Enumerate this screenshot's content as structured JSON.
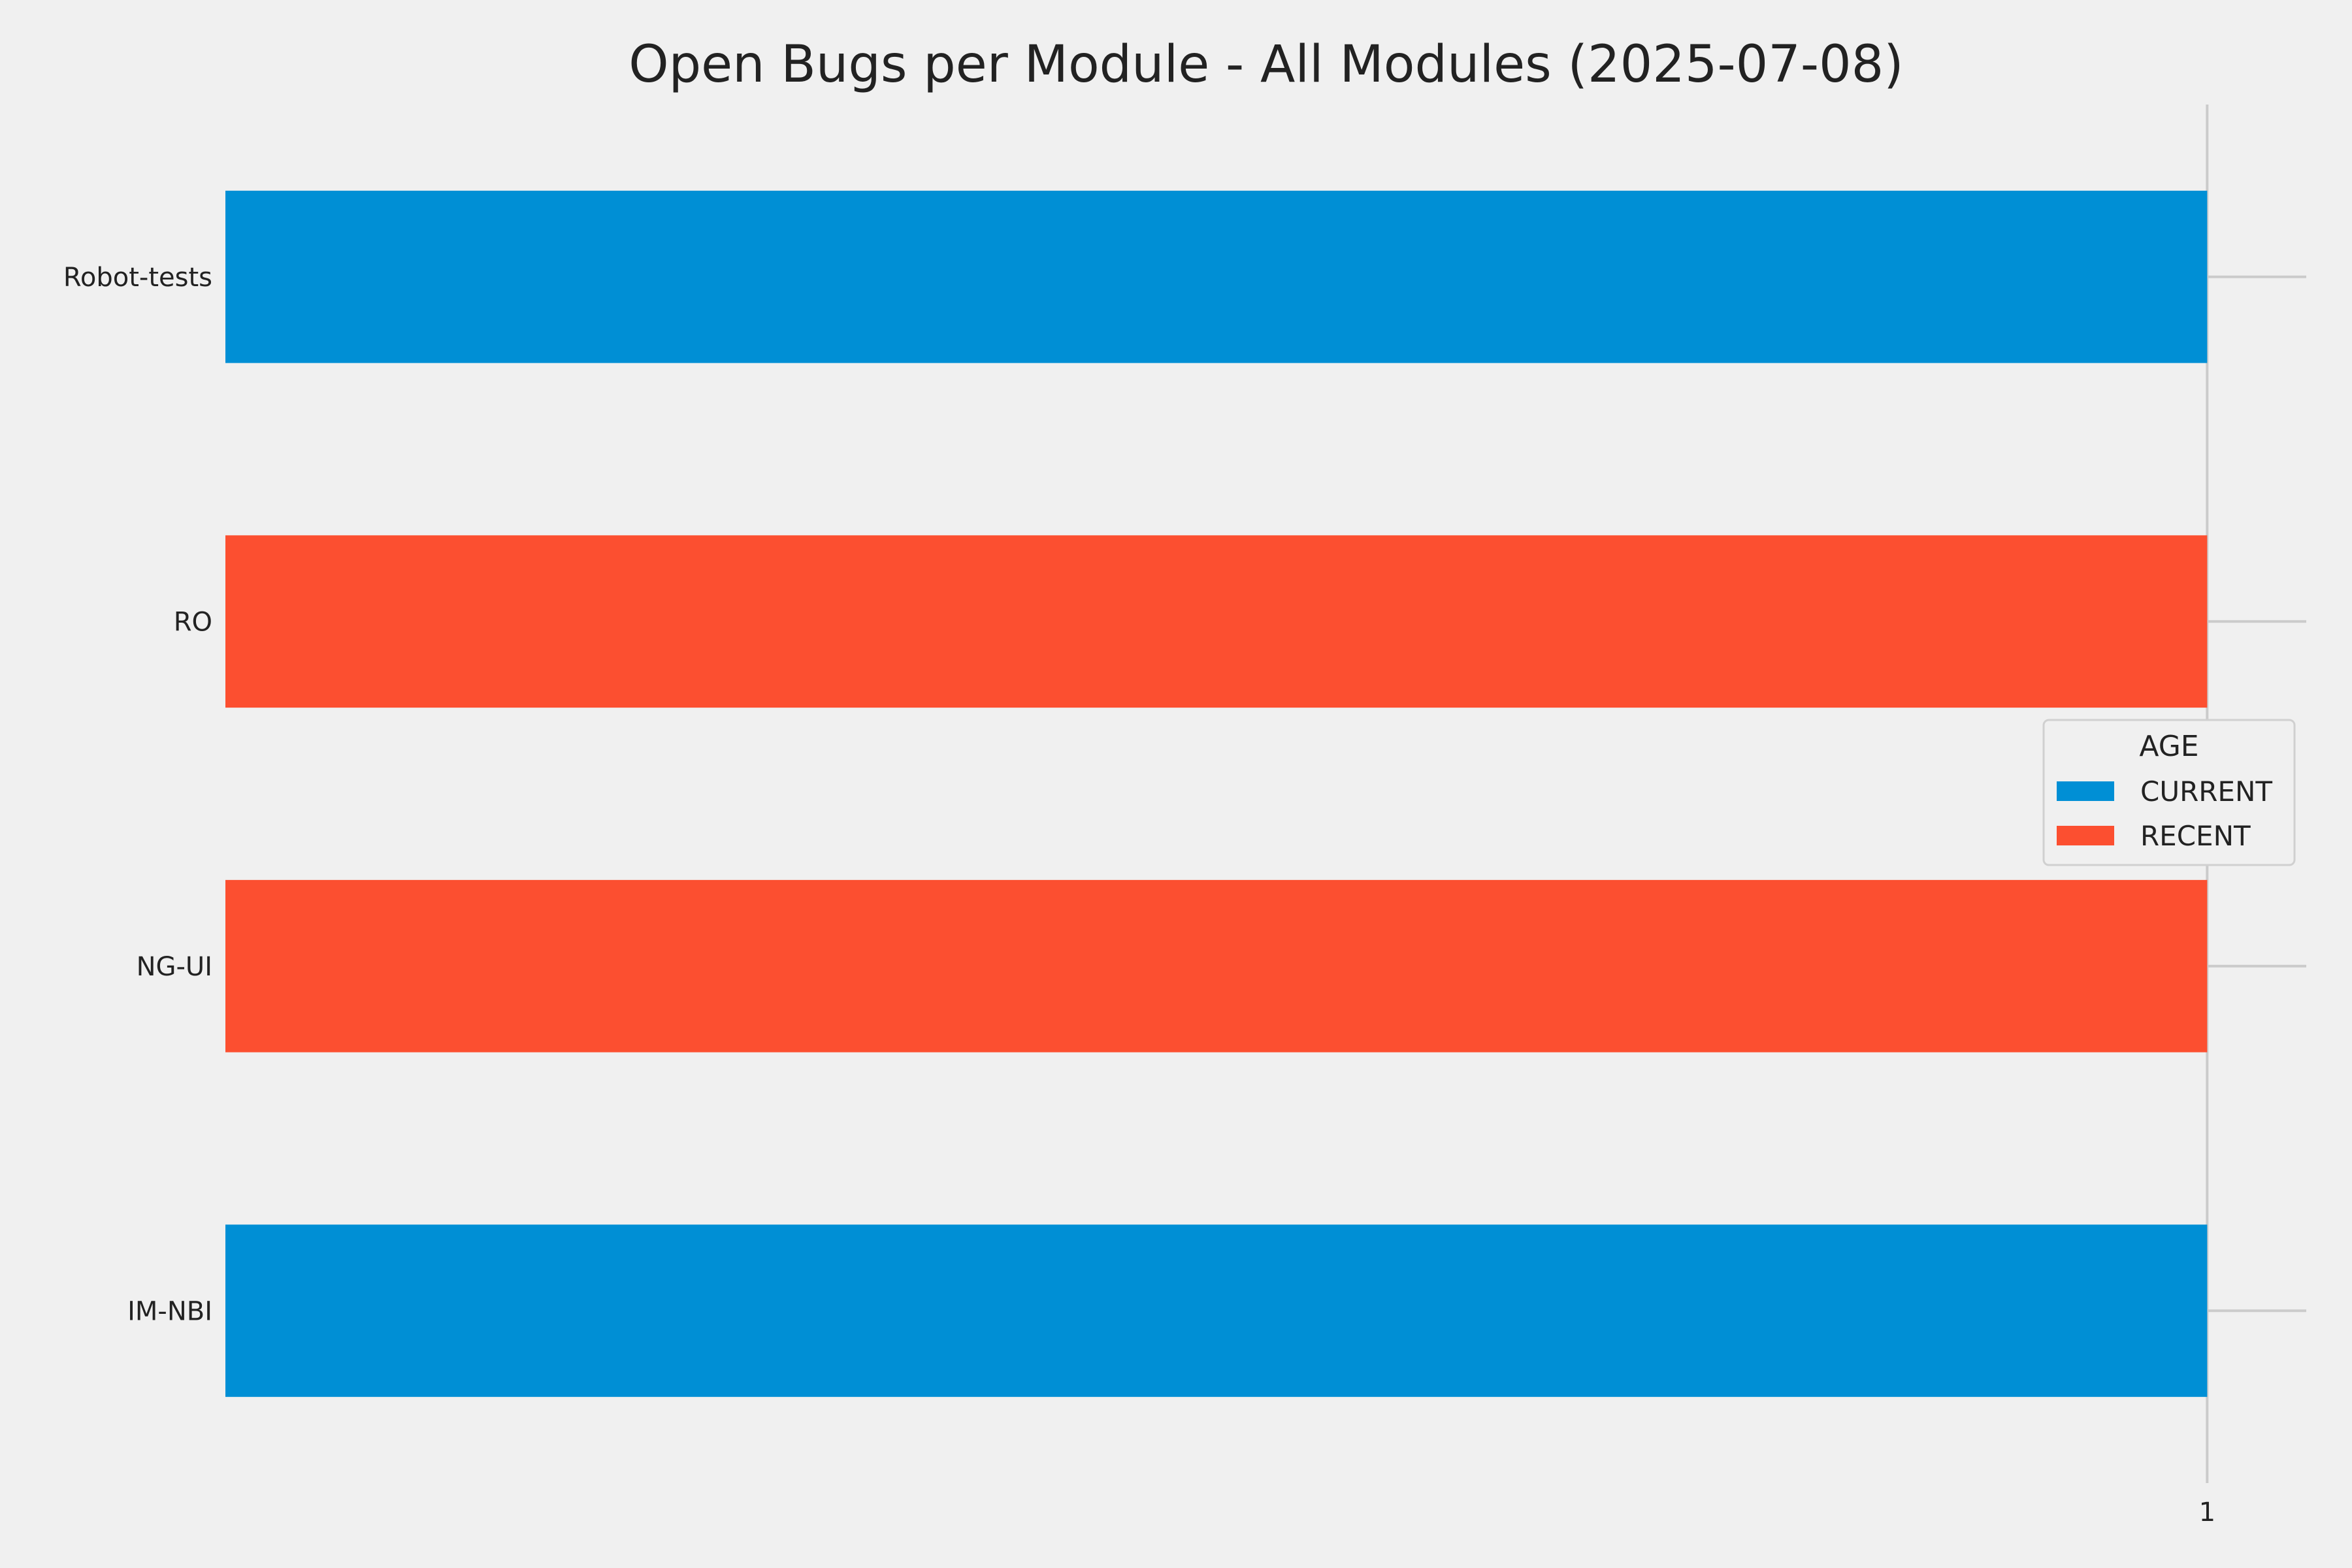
{
  "chart_data": {
    "type": "bar",
    "orientation": "horizontal",
    "title": "Open Bugs per Module - All Modules (2025-07-08)",
    "xlabel": "",
    "ylabel": "",
    "categories": [
      "Robot-tests",
      "RO",
      "NG-UI",
      "IM-NBI"
    ],
    "values": [
      1,
      1,
      1,
      1
    ],
    "bar_series": [
      "CURRENT",
      "RECENT",
      "RECENT",
      "CURRENT"
    ],
    "series": [
      {
        "name": "CURRENT",
        "color": "#008fd5"
      },
      {
        "name": "RECENT",
        "color": "#fc4f30"
      }
    ],
    "x_ticks": [
      1
    ],
    "xlim": [
      0,
      1.05
    ],
    "grid": true,
    "legend": {
      "title": "AGE",
      "placement": "center-right"
    }
  }
}
